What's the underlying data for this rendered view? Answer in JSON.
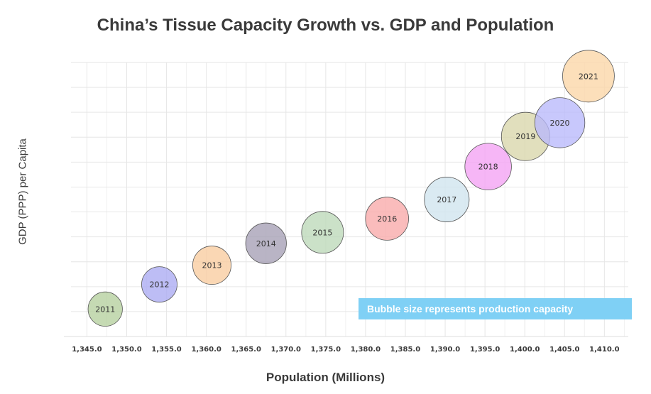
{
  "chart_data": {
    "type": "scatter",
    "title": "China’s Tissue Capacity Growth vs. GDP and Population",
    "xlabel": "Population (Millions)",
    "ylabel": "GDP (PPP) per Capita",
    "xlim": [
      1343,
      1413
    ],
    "ylim": [
      0,
      1
    ],
    "grid": true,
    "x_ticks": [
      "1,345.0",
      "1,350.0",
      "1,355.0",
      "1,360.0",
      "1,365.0",
      "1,370.0",
      "1,375.0",
      "1,380.0",
      "1,385.0",
      "1,390.0",
      "1,395.0",
      "1,400.0",
      "1,405.0",
      "1,410.0"
    ],
    "x_tick_values": [
      1345,
      1350,
      1355,
      1360,
      1365,
      1370,
      1375,
      1380,
      1385,
      1390,
      1395,
      1400,
      1405,
      1410
    ],
    "annotation": "Bubble size represents production capacity",
    "points": [
      {
        "label": "2011",
        "x": 1347.3,
        "y": 0.1,
        "size": 0.59,
        "color": "#b5cf9e"
      },
      {
        "label": "2012",
        "x": 1354.1,
        "y": 0.19,
        "size": 0.61,
        "color": "#aaaaf2"
      },
      {
        "label": "2013",
        "x": 1360.7,
        "y": 0.26,
        "size": 0.66,
        "color": "#f9cc9f"
      },
      {
        "label": "2014",
        "x": 1367.5,
        "y": 0.34,
        "size": 0.7,
        "color": "#a59fb5"
      },
      {
        "label": "2015",
        "x": 1374.6,
        "y": 0.38,
        "size": 0.72,
        "color": "#bdd8b8"
      },
      {
        "label": "2016",
        "x": 1382.7,
        "y": 0.43,
        "size": 0.74,
        "color": "#f9a9a9"
      },
      {
        "label": "2017",
        "x": 1390.2,
        "y": 0.5,
        "size": 0.77,
        "color": "#cfe4ee"
      },
      {
        "label": "2018",
        "x": 1395.4,
        "y": 0.62,
        "size": 0.8,
        "color": "#f3a2f3"
      },
      {
        "label": "2019",
        "x": 1400.1,
        "y": 0.73,
        "size": 0.83,
        "color": "#d8d6ab"
      },
      {
        "label": "2020",
        "x": 1404.4,
        "y": 0.78,
        "size": 0.86,
        "color": "#b9b9fb"
      },
      {
        "label": "2021",
        "x": 1408.0,
        "y": 0.95,
        "size": 0.89,
        "color": "#fbd6a6"
      }
    ]
  }
}
